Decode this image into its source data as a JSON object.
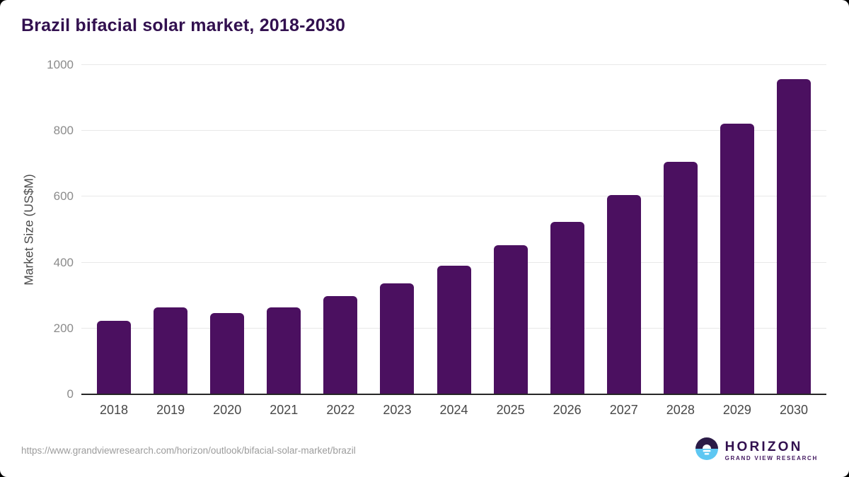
{
  "title": "Brazil bifacial solar market, 2018-2030",
  "chart_data": {
    "type": "bar",
    "categories": [
      "2018",
      "2019",
      "2020",
      "2021",
      "2022",
      "2023",
      "2024",
      "2025",
      "2026",
      "2027",
      "2028",
      "2029",
      "2030"
    ],
    "values": [
      223,
      265,
      246,
      263,
      299,
      337,
      390,
      452,
      523,
      606,
      705,
      821,
      957
    ],
    "title": "Brazil bifacial solar market, 2018-2030",
    "xlabel": "",
    "ylabel": "Market Size (US$M)",
    "ylim": [
      0,
      1000
    ],
    "yticks": [
      0,
      200,
      400,
      600,
      800,
      1000
    ],
    "bar_color": "#4b1060",
    "grid": "horizontal",
    "legend": "none"
  },
  "footer": {
    "source_url": "https://www.grandviewresearch.com/horizon/outlook/bifacial-solar-market/brazil",
    "logo": {
      "name": "HORIZON",
      "subtitle": "GRAND VIEW RESEARCH"
    }
  },
  "colors": {
    "title": "#32104f",
    "bar": "#4b1060",
    "gridline": "#e8e8e8",
    "axis_line": "#262626",
    "ytick_label": "#8b8b8b",
    "xtick_label": "#474747",
    "source_text": "#9c9c9c",
    "logo_dark": "#2b1b47",
    "logo_blue": "#5ec7f2"
  }
}
